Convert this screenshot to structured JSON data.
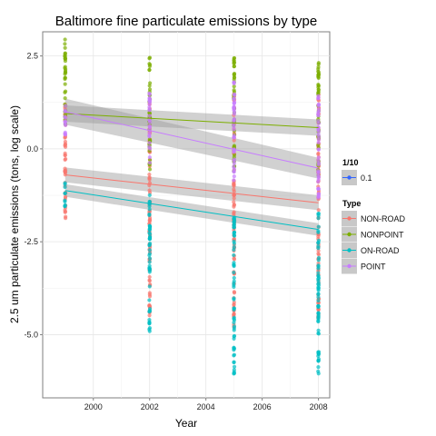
{
  "chart_data": {
    "type": "scatter",
    "title": "Baltimore fine particulate emissions by type",
    "xlabel": "Year",
    "ylabel": "2.5 um particulate emissions (tons, log scale)",
    "x_ticks": [
      2000,
      2002,
      2004,
      2006,
      2008
    ],
    "x_tick_labels": [
      "2000",
      "2002",
      "2004",
      "2006",
      "2008"
    ],
    "y_ticks": [
      -5.0,
      -2.5,
      0.0,
      2.5
    ],
    "y_tick_labels": [
      "-5.0",
      "-2.5",
      "0.0",
      "2.5"
    ],
    "xlim": [
      1998.2,
      2008.4
    ],
    "ylim": [
      -6.7,
      3.15
    ],
    "grid": true,
    "legend_alpha": {
      "title": "1/10",
      "label": "0.1"
    },
    "legend_type": {
      "title": "Type",
      "placement": "right"
    },
    "series": [
      {
        "name": "NON-ROAD",
        "color": "#F8766D",
        "points": [
          {
            "x": 1999,
            "y_range": [
              -2.0,
              1.2
            ]
          },
          {
            "x": 2002,
            "y_range": [
              -4.5,
              1.3
            ]
          },
          {
            "x": 2005,
            "y_range": [
              -4.8,
              1.6
            ]
          },
          {
            "x": 2008,
            "y_range": [
              -4.7,
              1.5
            ]
          }
        ],
        "trend": {
          "y1999": -0.7,
          "y2008": -1.45
        },
        "band": {
          "half1999": 0.2,
          "half2008": 0.2
        }
      },
      {
        "name": "NONPOINT",
        "color": "#7CAE00",
        "points": [
          {
            "x": 1999,
            "y_range": [
              0.5,
              3.0
            ]
          },
          {
            "x": 2002,
            "y_range": [
              -0.6,
              2.5
            ]
          },
          {
            "x": 2005,
            "y_range": [
              -0.7,
              2.5
            ]
          },
          {
            "x": 2008,
            "y_range": [
              -0.8,
              2.4
            ]
          }
        ],
        "trend": {
          "y1999": 0.95,
          "y2008": 0.57
        },
        "band": {
          "half1999": 0.22,
          "half2008": 0.22
        }
      },
      {
        "name": "ON-ROAD",
        "color": "#00BFC4",
        "points": [
          {
            "x": 1999,
            "y_range": [
              -1.6,
              -0.9
            ]
          },
          {
            "x": 2002,
            "y_range": [
              -5.0,
              -1.2
            ]
          },
          {
            "x": 2005,
            "y_range": [
              -6.1,
              -1.8
            ]
          },
          {
            "x": 2008,
            "y_range": [
              -6.1,
              -1.5
            ]
          }
        ],
        "trend": {
          "y1999": -1.12,
          "y2008": -2.17
        },
        "band": {
          "half1999": 0.17,
          "half2008": 0.17
        }
      },
      {
        "name": "POINT",
        "color": "#C77CFF",
        "points": [
          {
            "x": 1999,
            "y_range": [
              0.3,
              1.2
            ]
          },
          {
            "x": 2002,
            "y_range": [
              -0.4,
              1.5
            ]
          },
          {
            "x": 2005,
            "y_range": [
              -1.0,
              1.8
            ]
          },
          {
            "x": 2008,
            "y_range": [
              -1.5,
              1.5
            ]
          }
        ],
        "trend": {
          "y1999": 1.0,
          "y2008": -0.52
        },
        "band": {
          "half1999": 0.35,
          "half2008": 0.28
        }
      }
    ]
  }
}
